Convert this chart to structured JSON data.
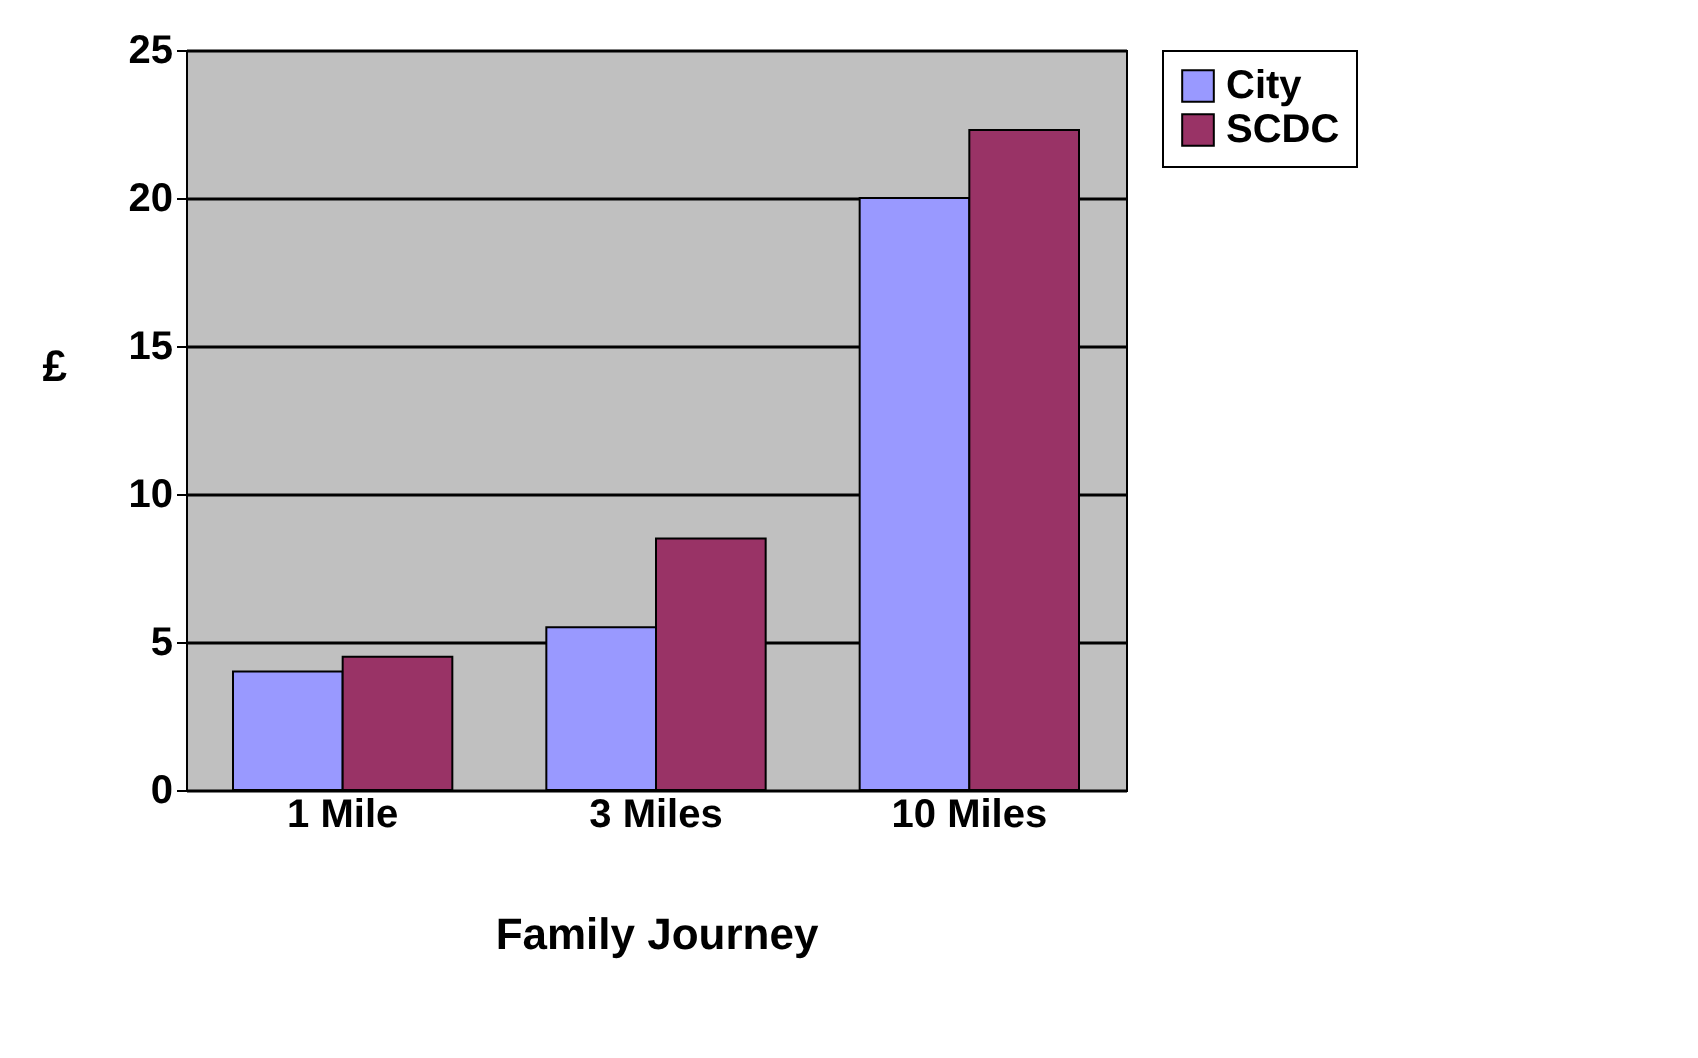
{
  "chart_data": {
    "type": "bar",
    "xlabel": "Family Journey",
    "ylabel": "£",
    "categories": [
      "1 Mile",
      "3 Miles",
      "10 Miles"
    ],
    "series": [
      {
        "name": "City",
        "color": "#9999ff",
        "values": [
          4,
          5.5,
          20
        ]
      },
      {
        "name": "SCDC",
        "color": "#993366",
        "values": [
          4.5,
          8.5,
          22.3
        ]
      }
    ],
    "ylim": [
      0,
      25
    ],
    "yticks": [
      0,
      5,
      10,
      15,
      20,
      25
    ],
    "grid": "y",
    "legend": "right"
  }
}
